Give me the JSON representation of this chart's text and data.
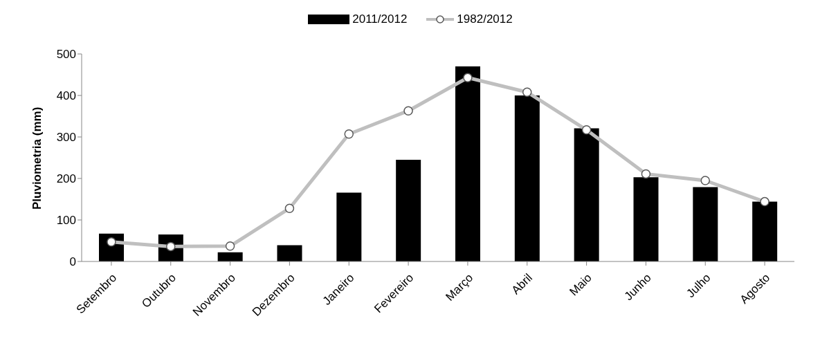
{
  "chart_data": {
    "type": "bar",
    "ylabel": "Pluviometria (mm)",
    "categories": [
      "Setembro",
      "Outubro",
      "Novembro",
      "Dezembro",
      "Janeiro",
      "Fevereiro",
      "Março",
      "Abril",
      "Maio",
      "Junho",
      "Julho",
      "Agosto"
    ],
    "series": [
      {
        "name": "2011/2012",
        "color": "#000000",
        "values": [
          67,
          65,
          22,
          39,
          166,
          245,
          470,
          400,
          321,
          203,
          179,
          144
        ]
      },
      {
        "name": "1982/2012",
        "type": "line",
        "color": "#bfbfbf",
        "marker": "circle",
        "values": [
          47,
          36,
          37,
          128,
          307,
          363,
          443,
          408,
          317,
          211,
          195,
          144
        ]
      }
    ],
    "ylim": [
      0,
      500
    ],
    "yticks": [
      0,
      100,
      200,
      300,
      400,
      500
    ],
    "grid": false,
    "legend": "top"
  }
}
